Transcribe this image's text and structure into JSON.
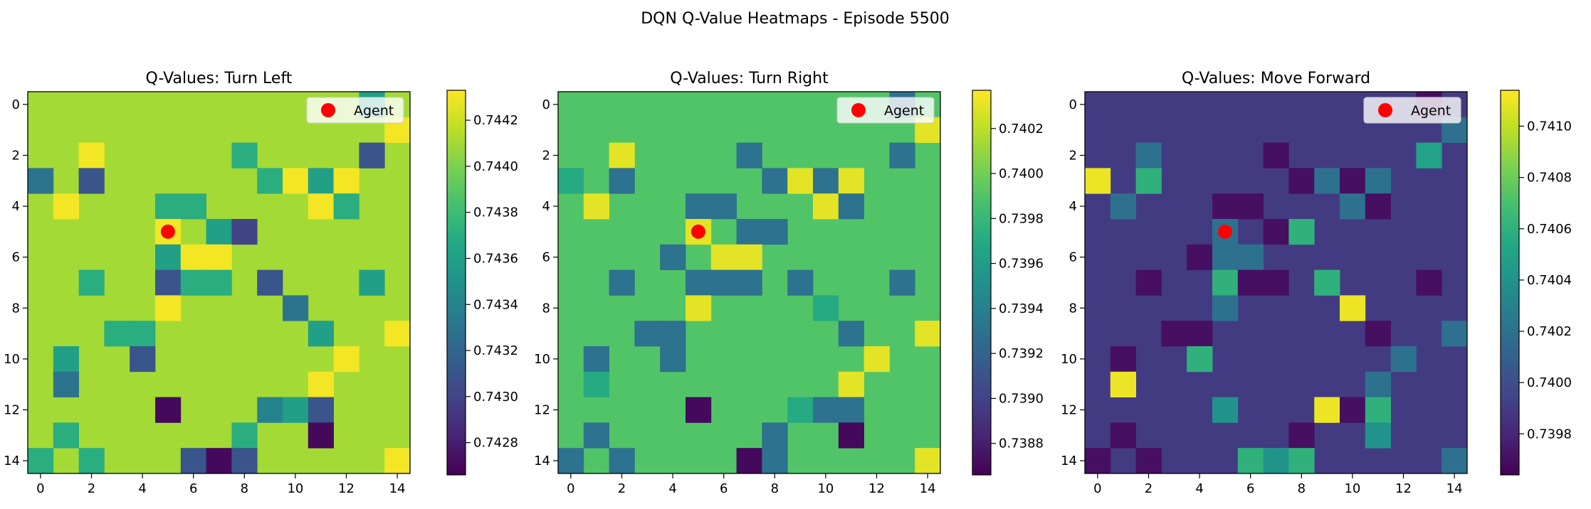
{
  "figure": {
    "suptitle": "DQN Q-Value Heatmaps - Episode 5500",
    "legend_label": "Agent",
    "agent_marker_color": "#ff0000",
    "colormap": "viridis",
    "colormap_stops": [
      "#440154",
      "#482475",
      "#414487",
      "#355f8d",
      "#2a788e",
      "#21918c",
      "#22a884",
      "#44bf70",
      "#7ad151",
      "#bddf26",
      "#fde725"
    ]
  },
  "chart_data": [
    {
      "type": "heatmap",
      "title": "Q-Values: Turn Left",
      "grid_size": 15,
      "x_ticks": [
        0,
        2,
        4,
        6,
        8,
        10,
        12,
        14
      ],
      "y_ticks": [
        0,
        2,
        4,
        6,
        8,
        10,
        12,
        14
      ],
      "colorbar": {
        "range": [
          0.74266,
          0.74433
        ],
        "ticks": [
          "0.7428",
          "0.7430",
          "0.7432",
          "0.7434",
          "0.7436",
          "0.7438",
          "0.7440",
          "0.7442"
        ]
      },
      "agent": {
        "x": 5,
        "y": 5
      },
      "legend": {
        "label": "Agent",
        "location": "upper right"
      },
      "baseline": 0.7441,
      "cells": [
        [
          0,
          13,
          0.7436
        ],
        [
          1,
          14,
          0.7443
        ],
        [
          2,
          2,
          0.7443
        ],
        [
          2,
          8,
          0.7437
        ],
        [
          2,
          13,
          0.7431
        ],
        [
          3,
          0,
          0.7433
        ],
        [
          3,
          2,
          0.7431
        ],
        [
          3,
          9,
          0.7437
        ],
        [
          3,
          10,
          0.7443
        ],
        [
          3,
          11,
          0.7436
        ],
        [
          3,
          12,
          0.7443
        ],
        [
          4,
          1,
          0.7443
        ],
        [
          4,
          5,
          0.7437
        ],
        [
          4,
          6,
          0.7437
        ],
        [
          4,
          11,
          0.7443
        ],
        [
          4,
          12,
          0.7437
        ],
        [
          5,
          5,
          0.7443
        ],
        [
          5,
          7,
          0.7436
        ],
        [
          5,
          8,
          0.743
        ],
        [
          6,
          5,
          0.7436
        ],
        [
          6,
          6,
          0.7443
        ],
        [
          6,
          7,
          0.7443
        ],
        [
          7,
          2,
          0.7437
        ],
        [
          7,
          5,
          0.7431
        ],
        [
          7,
          6,
          0.7437
        ],
        [
          7,
          7,
          0.7437
        ],
        [
          7,
          9,
          0.7431
        ],
        [
          7,
          13,
          0.7436
        ],
        [
          8,
          5,
          0.7443
        ],
        [
          8,
          10,
          0.7433
        ],
        [
          9,
          3,
          0.7437
        ],
        [
          9,
          4,
          0.7437
        ],
        [
          9,
          11,
          0.7436
        ],
        [
          9,
          14,
          0.7443
        ],
        [
          10,
          1,
          0.7436
        ],
        [
          10,
          4,
          0.7431
        ],
        [
          10,
          12,
          0.7443
        ],
        [
          11,
          1,
          0.7433
        ],
        [
          11,
          11,
          0.7443
        ],
        [
          12,
          5,
          0.7427
        ],
        [
          12,
          9,
          0.7434
        ],
        [
          12,
          10,
          0.7436
        ],
        [
          12,
          11,
          0.7431
        ],
        [
          13,
          1,
          0.7437
        ],
        [
          13,
          8,
          0.7437
        ],
        [
          13,
          11,
          0.7427
        ],
        [
          14,
          0,
          0.7437
        ],
        [
          14,
          2,
          0.7437
        ],
        [
          14,
          6,
          0.7431
        ],
        [
          14,
          7,
          0.7427
        ],
        [
          14,
          8,
          0.7431
        ],
        [
          14,
          14,
          0.7443
        ]
      ]
    },
    {
      "type": "heatmap",
      "title": "Q-Values: Turn Right",
      "grid_size": 15,
      "x_ticks": [
        0,
        2,
        4,
        6,
        8,
        10,
        12,
        14
      ],
      "y_ticks": [
        0,
        2,
        4,
        6,
        8,
        10,
        12,
        14
      ],
      "colorbar": {
        "range": [
          0.73866,
          0.74037
        ],
        "ticks": [
          "0.7388",
          "0.7390",
          "0.7392",
          "0.7394",
          "0.7396",
          "0.7398",
          "0.7400",
          "0.7402"
        ]
      },
      "agent": {
        "x": 5,
        "y": 5
      },
      "legend": {
        "label": "Agent",
        "location": "upper right"
      },
      "baseline": 0.7399,
      "cells": [
        [
          0,
          13,
          0.7393
        ],
        [
          1,
          14,
          0.7403
        ],
        [
          2,
          2,
          0.7403
        ],
        [
          2,
          7,
          0.7393
        ],
        [
          2,
          13,
          0.7393
        ],
        [
          3,
          0,
          0.7397
        ],
        [
          3,
          2,
          0.7393
        ],
        [
          3,
          8,
          0.7393
        ],
        [
          3,
          9,
          0.7403
        ],
        [
          3,
          10,
          0.7393
        ],
        [
          3,
          11,
          0.7403
        ],
        [
          4,
          1,
          0.7403
        ],
        [
          4,
          5,
          0.7393
        ],
        [
          4,
          6,
          0.7393
        ],
        [
          4,
          10,
          0.7403
        ],
        [
          4,
          11,
          0.7393
        ],
        [
          5,
          5,
          0.7403
        ],
        [
          5,
          7,
          0.7393
        ],
        [
          5,
          8,
          0.7393
        ],
        [
          6,
          4,
          0.7393
        ],
        [
          6,
          6,
          0.7403
        ],
        [
          6,
          7,
          0.7403
        ],
        [
          7,
          2,
          0.7393
        ],
        [
          7,
          5,
          0.7393
        ],
        [
          7,
          6,
          0.7393
        ],
        [
          7,
          7,
          0.7393
        ],
        [
          7,
          9,
          0.7393
        ],
        [
          7,
          13,
          0.7393
        ],
        [
          8,
          5,
          0.7403
        ],
        [
          8,
          10,
          0.7397
        ],
        [
          9,
          3,
          0.7393
        ],
        [
          9,
          4,
          0.7393
        ],
        [
          9,
          11,
          0.7393
        ],
        [
          9,
          14,
          0.7403
        ],
        [
          10,
          1,
          0.7393
        ],
        [
          10,
          4,
          0.7393
        ],
        [
          10,
          12,
          0.7403
        ],
        [
          11,
          1,
          0.7397
        ],
        [
          11,
          11,
          0.7403
        ],
        [
          12,
          5,
          0.7387
        ],
        [
          12,
          9,
          0.7397
        ],
        [
          12,
          10,
          0.7393
        ],
        [
          12,
          11,
          0.7393
        ],
        [
          13,
          1,
          0.7393
        ],
        [
          13,
          8,
          0.7393
        ],
        [
          13,
          11,
          0.7387
        ],
        [
          14,
          0,
          0.7393
        ],
        [
          14,
          2,
          0.7393
        ],
        [
          14,
          7,
          0.7387
        ],
        [
          14,
          8,
          0.7393
        ],
        [
          14,
          14,
          0.7403
        ]
      ]
    },
    {
      "type": "heatmap",
      "title": "Q-Values: Move Forward",
      "grid_size": 15,
      "x_ticks": [
        0,
        2,
        4,
        6,
        8,
        10,
        12,
        14
      ],
      "y_ticks": [
        0,
        2,
        4,
        6,
        8,
        10,
        12,
        14
      ],
      "colorbar": {
        "range": [
          0.73964,
          0.74114
        ],
        "ticks": [
          "0.7398",
          "0.7400",
          "0.7402",
          "0.7404",
          "0.7406",
          "0.7408",
          "0.7410"
        ]
      },
      "agent": {
        "x": 5,
        "y": 5
      },
      "legend": {
        "label": "Agent",
        "location": "upper right"
      },
      "baseline": 0.7399,
      "cells": [
        [
          0,
          13,
          0.7397
        ],
        [
          1,
          14,
          0.7402
        ],
        [
          2,
          2,
          0.7402
        ],
        [
          2,
          7,
          0.7397
        ],
        [
          2,
          13,
          0.7405
        ],
        [
          3,
          0,
          0.7411
        ],
        [
          3,
          2,
          0.7406
        ],
        [
          3,
          8,
          0.7397
        ],
        [
          3,
          9,
          0.7402
        ],
        [
          3,
          10,
          0.7397
        ],
        [
          3,
          11,
          0.7402
        ],
        [
          4,
          1,
          0.7402
        ],
        [
          4,
          5,
          0.7397
        ],
        [
          4,
          6,
          0.7397
        ],
        [
          4,
          10,
          0.7402
        ],
        [
          4,
          11,
          0.7397
        ],
        [
          5,
          5,
          0.7402
        ],
        [
          5,
          7,
          0.7397
        ],
        [
          5,
          8,
          0.7406
        ],
        [
          6,
          4,
          0.7397
        ],
        [
          6,
          5,
          0.7402
        ],
        [
          6,
          6,
          0.7402
        ],
        [
          7,
          2,
          0.7397
        ],
        [
          7,
          5,
          0.7406
        ],
        [
          7,
          6,
          0.7397
        ],
        [
          7,
          7,
          0.7397
        ],
        [
          7,
          9,
          0.7406
        ],
        [
          7,
          13,
          0.7397
        ],
        [
          8,
          5,
          0.7402
        ],
        [
          8,
          10,
          0.7411
        ],
        [
          9,
          3,
          0.7397
        ],
        [
          9,
          4,
          0.7397
        ],
        [
          9,
          11,
          0.7397
        ],
        [
          9,
          14,
          0.7402
        ],
        [
          10,
          1,
          0.7397
        ],
        [
          10,
          4,
          0.7406
        ],
        [
          10,
          12,
          0.7402
        ],
        [
          11,
          1,
          0.7411
        ],
        [
          11,
          11,
          0.7402
        ],
        [
          12,
          5,
          0.7404
        ],
        [
          12,
          9,
          0.7411
        ],
        [
          12,
          10,
          0.7397
        ],
        [
          12,
          11,
          0.7406
        ],
        [
          13,
          1,
          0.7397
        ],
        [
          13,
          8,
          0.7397
        ],
        [
          13,
          11,
          0.7404
        ],
        [
          14,
          0,
          0.7397
        ],
        [
          14,
          2,
          0.7397
        ],
        [
          14,
          6,
          0.7406
        ],
        [
          14,
          7,
          0.7404
        ],
        [
          14,
          8,
          0.7406
        ],
        [
          14,
          14,
          0.7402
        ]
      ]
    }
  ]
}
